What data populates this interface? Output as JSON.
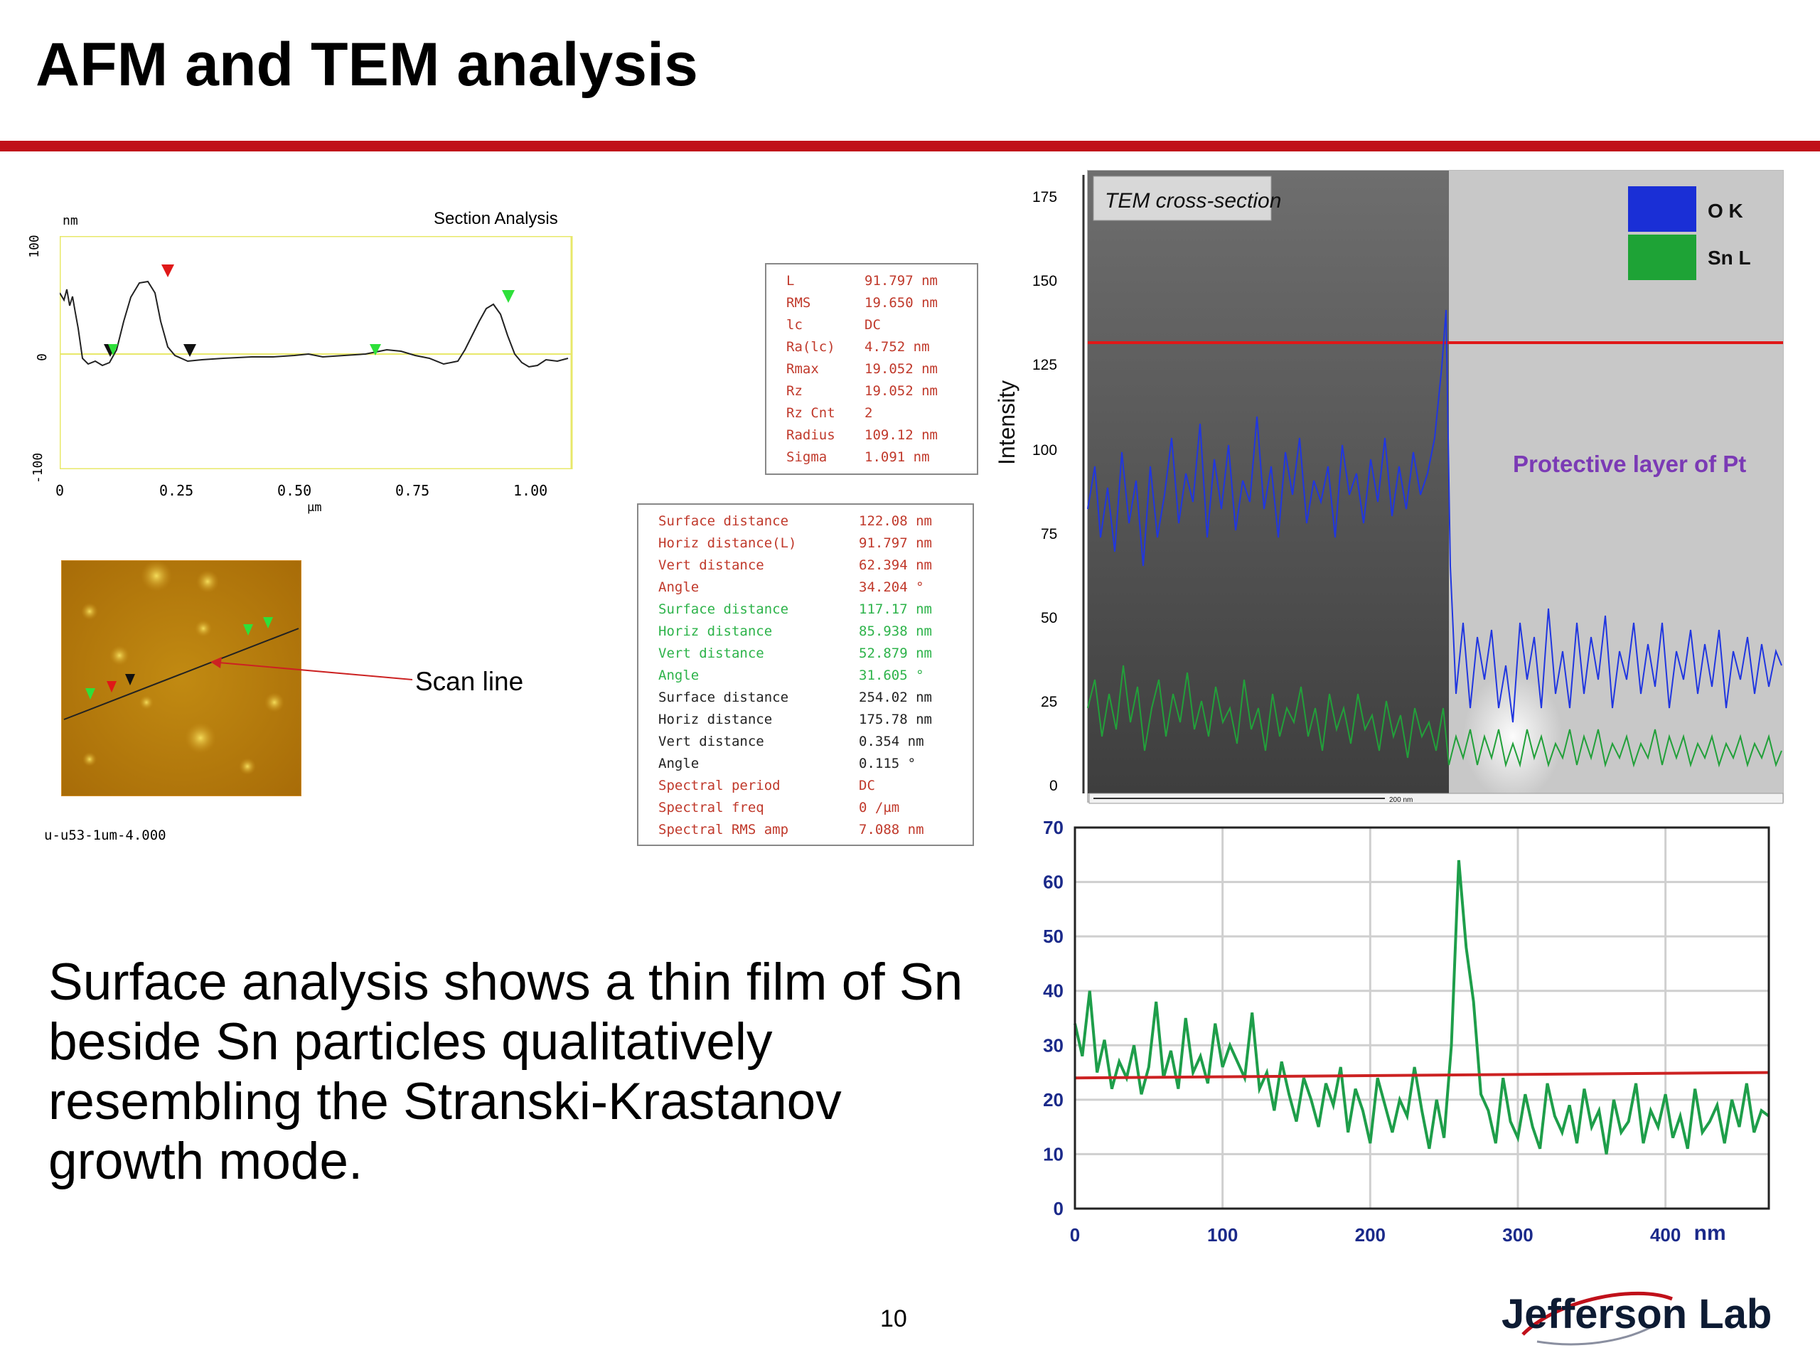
{
  "slide": {
    "title": "AFM and TEM analysis",
    "body_text": "Surface analysis shows a thin film of Sn beside Sn particles qualitatively resembling the Stranski-Krastanov growth mode.",
    "page_number": "10",
    "logo_text": "Jefferson Lab"
  },
  "afm_section": {
    "title": "Section Analysis",
    "y_unit": "nm",
    "x_unit": "µm",
    "y_ticks": [
      "100",
      "0",
      "-100"
    ],
    "x_ticks": [
      "0",
      "0.25",
      "0.50",
      "0.75",
      "1.00"
    ],
    "image_caption": "u-u53-1um-4.000",
    "scan_line_label": "Scan line"
  },
  "stats_box_1": [
    {
      "key": "L",
      "value": "91.797",
      "unit": "nm"
    },
    {
      "key": "RMS",
      "value": "19.650",
      "unit": "nm"
    },
    {
      "key": "lc",
      "value": "DC",
      "unit": ""
    },
    {
      "key": "Ra(lc)",
      "value": "4.752",
      "unit": "nm"
    },
    {
      "key": "Rmax",
      "value": "19.052",
      "unit": "nm"
    },
    {
      "key": "Rz",
      "value": "19.052",
      "unit": "nm"
    },
    {
      "key": "Rz Cnt",
      "value": "2",
      "unit": ""
    },
    {
      "key": "Radius",
      "value": "109.12",
      "unit": "nm"
    },
    {
      "key": "Sigma",
      "value": "1.091",
      "unit": "nm"
    }
  ],
  "stats_box_2": [
    {
      "key": "Surface distance",
      "value": "122.08",
      "unit": "nm",
      "color": "#c0392b"
    },
    {
      "key": "Horiz distance(L)",
      "value": "91.797",
      "unit": "nm",
      "color": "#c0392b"
    },
    {
      "key": "Vert distance",
      "value": "62.394",
      "unit": "nm",
      "color": "#c0392b"
    },
    {
      "key": "Angle",
      "value": "34.204",
      "unit": "°",
      "color": "#c0392b"
    },
    {
      "key": "Surface distance",
      "value": "117.17",
      "unit": "nm",
      "color": "#2db34a"
    },
    {
      "key": "Horiz distance",
      "value": "85.938",
      "unit": "nm",
      "color": "#2db34a"
    },
    {
      "key": "Vert distance",
      "value": "52.879",
      "unit": "nm",
      "color": "#2db34a"
    },
    {
      "key": "Angle",
      "value": "31.605",
      "unit": "°",
      "color": "#2db34a"
    },
    {
      "key": "Surface distance",
      "value": "254.02",
      "unit": "nm",
      "color": "#222222"
    },
    {
      "key": "Horiz distance",
      "value": "175.78",
      "unit": "nm",
      "color": "#222222"
    },
    {
      "key": "Vert distance",
      "value": "0.354",
      "unit": "nm",
      "color": "#222222"
    },
    {
      "key": "Angle",
      "value": "0.115",
      "unit": "°",
      "color": "#222222"
    },
    {
      "key": "Spectral period",
      "value": "DC",
      "unit": "",
      "color": "#c0392b"
    },
    {
      "key": "Spectral freq",
      "value": "0",
      "unit": "/µm",
      "color": "#c0392b"
    },
    {
      "key": "Spectral RMS amp",
      "value": "7.088",
      "unit": "nm",
      "color": "#c0392b"
    }
  ],
  "tem": {
    "image_label": "TEM cross-section",
    "ylabel": "Intensity",
    "y_ticks": [
      "175",
      "150",
      "125",
      "100",
      "75",
      "50",
      "25",
      "0"
    ],
    "legend": [
      {
        "name": "O K",
        "color": "#1a2fd6"
      },
      {
        "name": "Sn L",
        "color": "#1ea336"
      }
    ],
    "annotation": "Protective layer of Pt",
    "scale_bar_label": "200 nm",
    "annotation_color": "#7b3ab5"
  },
  "chart_data": {
    "type": "line",
    "title": "",
    "xlabel": "nm",
    "ylabel": "",
    "xlim": [
      0,
      470
    ],
    "ylim": [
      0,
      70
    ],
    "x_ticks": [
      "0",
      "100",
      "200",
      "300",
      "400"
    ],
    "y_ticks": [
      "0",
      "10",
      "20",
      "30",
      "40",
      "50",
      "60",
      "70"
    ],
    "grid": true,
    "series": [
      {
        "color": "#1e9e4a",
        "x": [
          0,
          5,
          10,
          15,
          20,
          25,
          30,
          35,
          40,
          45,
          50,
          55,
          60,
          65,
          70,
          75,
          80,
          85,
          90,
          95,
          100,
          105,
          110,
          115,
          120,
          125,
          130,
          135,
          140,
          145,
          150,
          155,
          160,
          165,
          170,
          175,
          180,
          185,
          190,
          195,
          200,
          205,
          210,
          215,
          220,
          225,
          230,
          235,
          240,
          245,
          250,
          255,
          260,
          265,
          270,
          275,
          280,
          285,
          290,
          295,
          300,
          305,
          310,
          315,
          320,
          325,
          330,
          335,
          340,
          345,
          350,
          355,
          360,
          365,
          370,
          375,
          380,
          385,
          390,
          395,
          400,
          405,
          410,
          415,
          420,
          425,
          430,
          435,
          440,
          445,
          450,
          455,
          460,
          465,
          470
        ],
        "values": [
          34,
          28,
          40,
          25,
          31,
          22,
          27,
          24,
          30,
          21,
          26,
          38,
          24,
          29,
          22,
          35,
          25,
          28,
          23,
          34,
          26,
          30,
          27,
          24,
          36,
          22,
          25,
          18,
          27,
          21,
          16,
          24,
          20,
          15,
          23,
          19,
          26,
          14,
          22,
          18,
          12,
          24,
          19,
          14,
          20,
          17,
          26,
          18,
          11,
          20,
          13,
          30,
          64,
          48,
          38,
          21,
          18,
          12,
          24,
          16,
          13,
          21,
          15,
          11,
          23,
          17,
          14,
          19,
          12,
          22,
          15,
          18,
          10,
          20,
          14,
          16,
          23,
          12,
          18,
          15,
          21,
          13,
          17,
          11,
          22,
          14,
          16,
          19,
          12,
          20,
          15,
          23,
          14,
          18,
          17
        ],
        "name": ""
      },
      {
        "color": "#cc2222",
        "x": [
          0,
          470
        ],
        "values": [
          24,
          25
        ],
        "name": ""
      }
    ]
  }
}
